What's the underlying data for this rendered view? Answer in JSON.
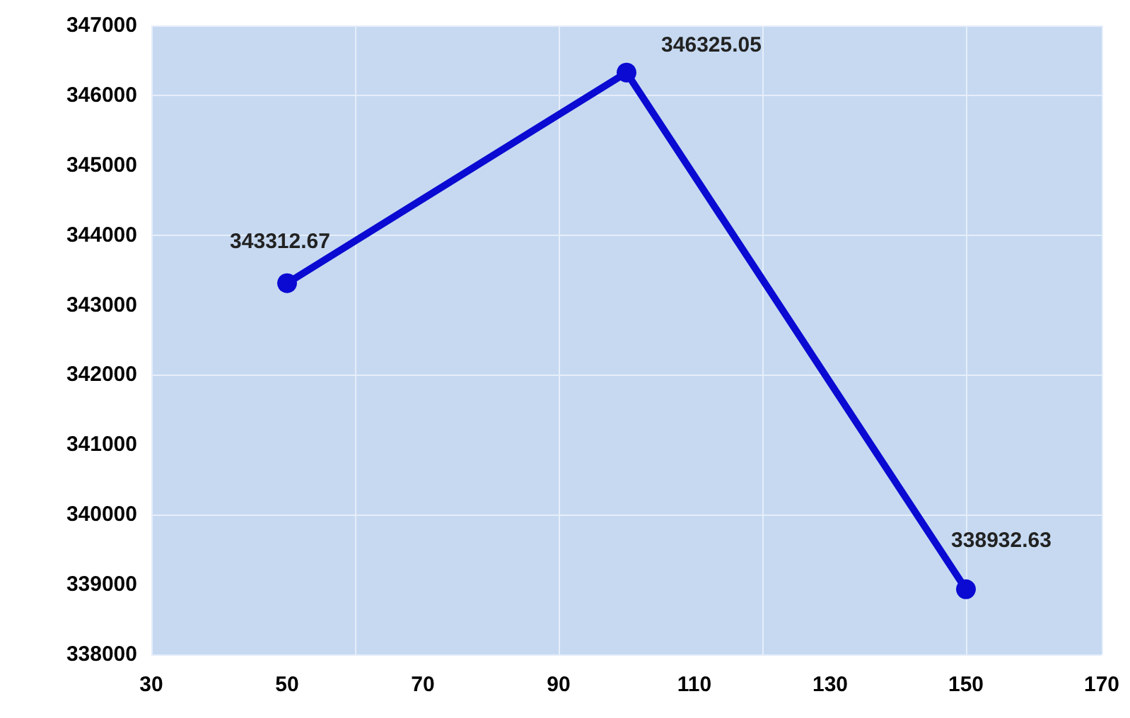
{
  "chart_data": {
    "type": "line",
    "x": [
      50,
      100,
      150
    ],
    "series": [
      {
        "color": "#0a0ad2",
        "values": [
          343312.67,
          346325.05,
          338932.63
        ]
      }
    ],
    "xlim": [
      30,
      170
    ],
    "xticks": [
      30,
      50,
      70,
      90,
      110,
      130,
      150,
      170
    ],
    "ylim": [
      338000,
      347000
    ],
    "yticks": [
      338000,
      339000,
      340000,
      341000,
      342000,
      343000,
      344000,
      345000,
      346000,
      347000
    ],
    "grid": true,
    "marker": "circle",
    "line_style": "solid",
    "data_labels": true
  }
}
